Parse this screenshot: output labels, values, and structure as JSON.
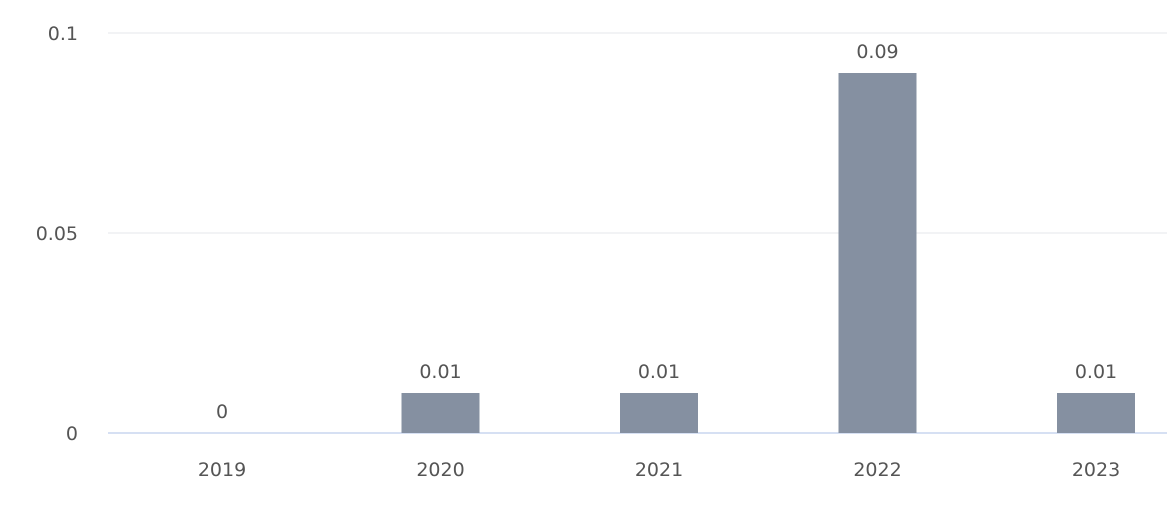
{
  "chart_data": {
    "type": "bar",
    "categories": [
      "2019",
      "2020",
      "2021",
      "2022",
      "2023"
    ],
    "values": [
      0,
      0.01,
      0.01,
      0.09,
      0.01
    ],
    "data_labels": [
      "0",
      "0.01",
      "0.01",
      "0.09",
      "0.01"
    ],
    "title": "",
    "xlabel": "",
    "ylabel": "",
    "ylim": [
      0,
      0.1
    ],
    "y_ticks": [
      {
        "value": 0,
        "label": "0"
      },
      {
        "value": 0.05,
        "label": "0.05"
      },
      {
        "value": 0.1,
        "label": "0.1"
      }
    ],
    "grid": true,
    "legend": "none",
    "colors": {
      "bar": "#8590a1",
      "grid": "#e5e7eb",
      "baseline": "#c8d5ef",
      "text": "#555555"
    }
  }
}
